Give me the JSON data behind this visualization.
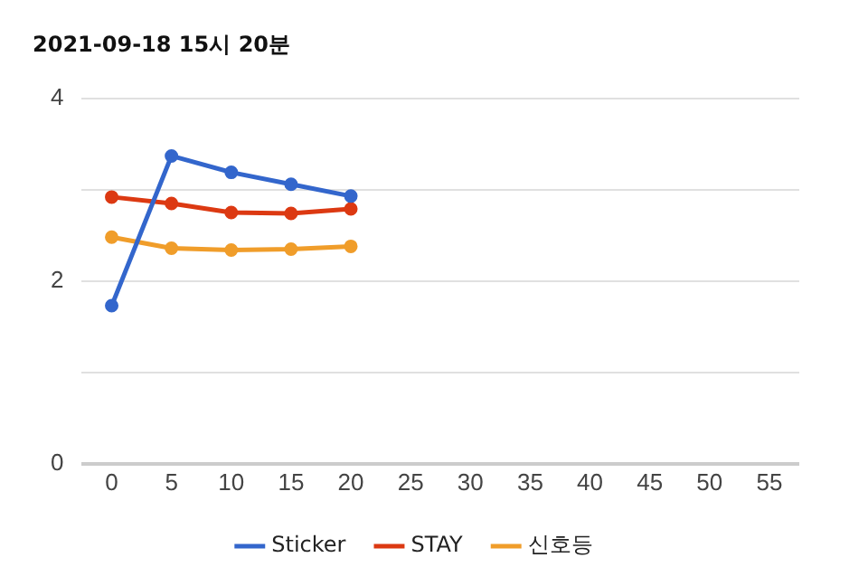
{
  "chart_data": {
    "type": "line",
    "title": "2021-09-18 15시 20분",
    "x": [
      0,
      5,
      10,
      15,
      20
    ],
    "series": [
      {
        "name": "Sticker",
        "color": "#3366cc",
        "values": [
          1.73,
          3.37,
          3.19,
          3.06,
          2.93
        ]
      },
      {
        "name": "STAY",
        "color": "#dc3912",
        "values": [
          2.92,
          2.85,
          2.75,
          2.74,
          2.79
        ]
      },
      {
        "name": "신호등",
        "color": "#f09d2a",
        "values": [
          2.48,
          2.36,
          2.34,
          2.35,
          2.38
        ]
      }
    ],
    "xlim": [
      -2.5,
      57.5
    ],
    "xticks": [
      0,
      5,
      10,
      15,
      20,
      25,
      30,
      35,
      40,
      45,
      50,
      55
    ],
    "ylim": [
      0,
      4
    ],
    "yticks": [
      0,
      {
        "value": 1,
        "label": null
      },
      2,
      {
        "value": 3,
        "label": null
      },
      4
    ],
    "grid": "y",
    "legend": "bottom",
    "marker": "circle",
    "line_style": "solid"
  }
}
